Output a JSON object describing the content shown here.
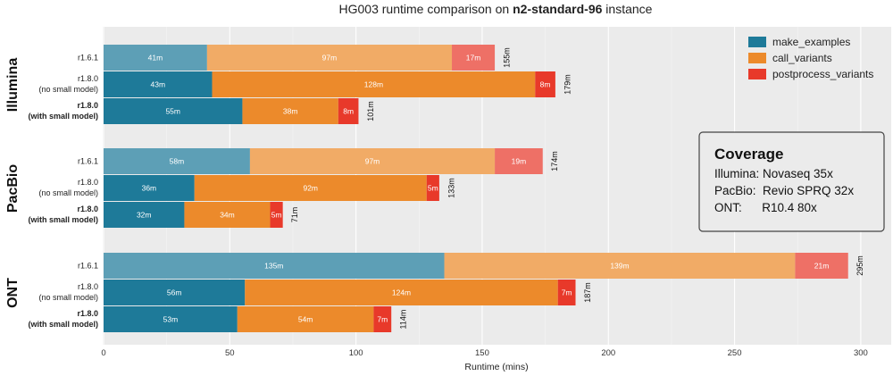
{
  "chart_data": {
    "type": "bar",
    "orientation": "horizontal",
    "stacked": true,
    "title_plain": "HG003 runtime comparison on ",
    "title_bold": "n2-standard-96",
    "title_suffix": " instance",
    "xlabel": "Runtime (mins)",
    "xlim": [
      0,
      310
    ],
    "xticks": [
      0,
      50,
      100,
      150,
      200,
      250,
      300
    ],
    "grid": true,
    "legend_position": "top-right",
    "series": [
      {
        "name": "make_examples",
        "color": "#1e7a99"
      },
      {
        "name": "call_variants",
        "color": "#ec8a2b"
      },
      {
        "name": "postprocess_variants",
        "color": "#e8392a"
      }
    ],
    "groups": [
      {
        "name": "Illumina",
        "rows": [
          {
            "label_line1": "r1.6.1",
            "label_line2": "",
            "bold": false,
            "faded": true,
            "values": [
              41,
              97,
              17
            ],
            "value_labels": [
              "41m",
              "97m",
              "17m"
            ],
            "total_label": "155m"
          },
          {
            "label_line1": "r1.8.0",
            "label_line2": "(no small model)",
            "bold": false,
            "faded": false,
            "values": [
              43,
              128,
              8
            ],
            "value_labels": [
              "43m",
              "128m",
              "8m"
            ],
            "total_label": "179m"
          },
          {
            "label_line1": "r1.8.0",
            "label_line2": "(with small model)",
            "bold": true,
            "faded": false,
            "values": [
              55,
              38,
              8
            ],
            "value_labels": [
              "55m",
              "38m",
              "8m"
            ],
            "total_label": "101m"
          }
        ]
      },
      {
        "name": "PacBio",
        "rows": [
          {
            "label_line1": "r1.6.1",
            "label_line2": "",
            "bold": false,
            "faded": true,
            "values": [
              58,
              97,
              19
            ],
            "value_labels": [
              "58m",
              "97m",
              "19m"
            ],
            "total_label": "174m"
          },
          {
            "label_line1": "r1.8.0",
            "label_line2": "(no small model)",
            "bold": false,
            "faded": false,
            "values": [
              36,
              92,
              5
            ],
            "value_labels": [
              "36m",
              "92m",
              "5m"
            ],
            "total_label": "133m"
          },
          {
            "label_line1": "r1.8.0",
            "label_line2": "(with small model)",
            "bold": true,
            "faded": false,
            "values": [
              32,
              34,
              5
            ],
            "value_labels": [
              "32m",
              "34m",
              "5m"
            ],
            "total_label": "71m"
          }
        ]
      },
      {
        "name": "ONT",
        "rows": [
          {
            "label_line1": "r1.6.1",
            "label_line2": "",
            "bold": false,
            "faded": true,
            "values": [
              135,
              139,
              21
            ],
            "value_labels": [
              "135m",
              "139m",
              "21m"
            ],
            "total_label": "295m"
          },
          {
            "label_line1": "r1.8.0",
            "label_line2": "(no small model)",
            "bold": false,
            "faded": false,
            "values": [
              56,
              124,
              7
            ],
            "value_labels": [
              "56m",
              "124m",
              "7m"
            ],
            "total_label": "187m"
          },
          {
            "label_line1": "r1.8.0",
            "label_line2": "(with small model)",
            "bold": true,
            "faded": false,
            "values": [
              53,
              54,
              7
            ],
            "value_labels": [
              "53m",
              "54m",
              "7m"
            ],
            "total_label": "114m"
          }
        ]
      }
    ],
    "annotation_box": {
      "title": "Coverage",
      "lines": [
        "Illumina: Novaseq 35x",
        "PacBio:  Revio SPRQ 32x",
        "ONT:      R10.4 80x"
      ]
    }
  }
}
